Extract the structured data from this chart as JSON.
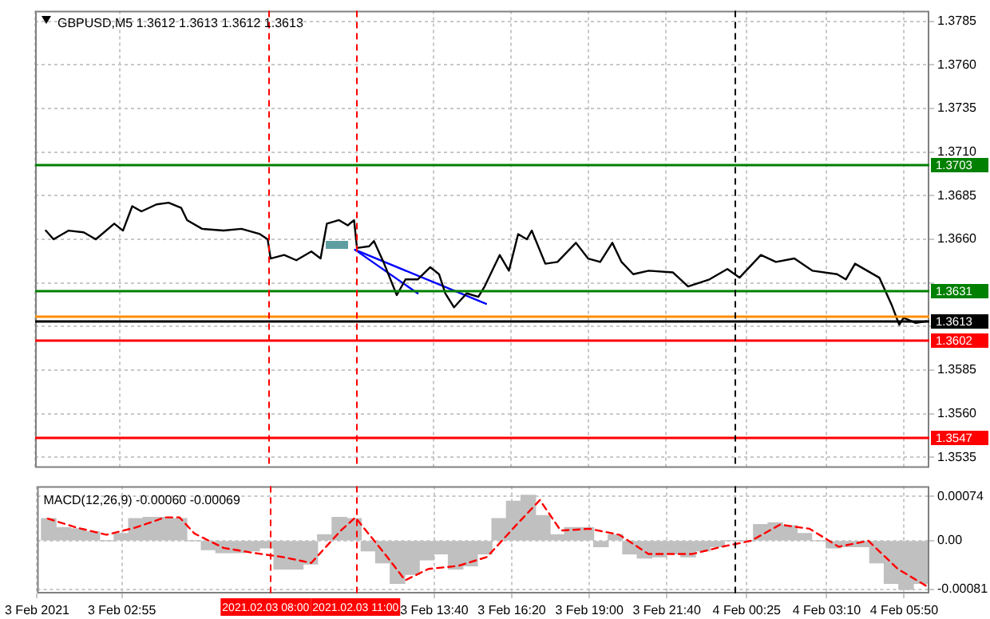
{
  "chart_data": [
    {
      "type": "line",
      "title": "GBPUSD,M5 1.3612 1.3613 1.3612 1.3613",
      "marker": "none",
      "grid": true,
      "tick_labels": "y",
      "xlim": [
        "2021-02-03T00:00",
        "2021-02-04T06:42"
      ],
      "xticks": [
        {
          "value": "2021-02-03T00:00",
          "label": null
        },
        {
          "value": "2021-02-03T02:55",
          "label": null
        },
        {
          "value": "2021-02-03T13:40",
          "label": null
        },
        {
          "value": "2021-02-03T16:20",
          "label": null
        },
        {
          "value": "2021-02-03T19:00",
          "label": null
        },
        {
          "value": "2021-02-03T21:40",
          "label": null
        },
        {
          "value": "2021-02-04T00:25",
          "label": null
        },
        {
          "value": "2021-02-04T03:10",
          "label": null
        },
        {
          "value": "2021-02-04T05:50",
          "label": null
        }
      ],
      "ylim": [
        1.3529,
        1.3791
      ],
      "yticks": [
        1.3785,
        {
          "value": 1.376,
          "label": "1.3760"
        },
        1.3735,
        {
          "value": 1.371,
          "label": "1.3710"
        },
        1.3685,
        {
          "value": 1.366,
          "label": "1.3660"
        },
        {
          "value": 1.3635,
          "label": null
        },
        {
          "value": 1.361,
          "label": null
        },
        1.3585,
        {
          "value": 1.356,
          "label": "1.3560"
        },
        1.3535
      ],
      "series": [
        {
          "color": "#000000",
          "x": [
            "2021-02-03T00:22",
            "2021-02-03T00:38",
            "2021-02-03T01:09",
            "2021-02-03T01:40",
            "2021-02-03T02:05",
            "2021-02-03T02:43",
            "2021-02-03T03:01",
            "2021-02-03T03:20",
            "2021-02-03T03:39",
            "2021-02-03T04:10",
            "2021-02-03T04:35",
            "2021-02-03T05:01",
            "2021-02-03T05:13",
            "2021-02-03T05:44",
            "2021-02-03T06:28",
            "2021-02-03T07:05",
            "2021-02-03T07:43",
            "2021-02-03T07:59",
            "2021-02-03T08:05",
            "2021-02-03T08:33",
            "2021-02-03T08:58",
            "2021-02-03T09:29",
            "2021-02-03T09:48",
            "2021-02-03T10:01",
            "2021-02-03T10:26",
            "2021-02-03T10:44",
            "2021-02-03T10:57",
            "2021-02-03T11:03",
            "2021-02-03T11:28",
            "2021-02-03T11:38",
            "2021-02-03T11:59",
            "2021-02-03T12:25",
            "2021-02-03T12:43",
            "2021-02-03T13:08",
            "2021-02-03T13:34",
            "2021-02-03T13:52",
            "2021-02-03T14:05",
            "2021-02-03T14:23",
            "2021-02-03T14:49",
            "2021-02-03T15:13",
            "2021-02-03T15:26",
            "2021-02-03T15:38",
            "2021-02-03T15:57",
            "2021-02-03T16:16",
            "2021-02-03T16:35",
            "2021-02-03T16:53",
            "2021-02-03T17:03",
            "2021-02-03T17:31",
            "2021-02-03T17:56",
            "2021-02-03T18:34",
            "2021-02-03T18:59",
            "2021-02-03T19:24",
            "2021-02-03T19:49",
            "2021-02-03T20:08",
            "2021-02-03T20:32",
            "2021-02-03T21:04",
            "2021-02-03T21:54",
            "2021-02-03T22:25",
            "2021-02-03T23:09",
            "2021-02-03T23:46",
            "2021-02-04T00:11",
            "2021-02-04T00:55",
            "2021-02-04T01:26",
            "2021-02-04T02:04",
            "2021-02-04T02:41",
            "2021-02-04T03:32",
            "2021-02-04T03:50",
            "2021-02-04T04:09",
            "2021-02-04T04:59",
            "2021-02-04T05:25",
            "2021-02-04T05:40",
            "2021-02-04T05:49",
            "2021-02-04T06:14",
            "2021-02-04T06:36"
          ],
          "values": [
            1.3665,
            1.366,
            1.3665,
            1.3664,
            1.366,
            1.3669,
            1.3665,
            1.3679,
            1.3676,
            1.368,
            1.3681,
            1.3678,
            1.3671,
            1.3666,
            1.3665,
            1.3666,
            1.3663,
            1.366,
            1.3649,
            1.3651,
            1.3648,
            1.3653,
            1.3649,
            1.3669,
            1.3671,
            1.3668,
            1.3671,
            1.3655,
            1.3656,
            1.3659,
            1.3646,
            1.3628,
            1.3637,
            1.3637,
            1.3644,
            1.364,
            1.3629,
            1.3621,
            1.3629,
            1.3627,
            1.3633,
            1.364,
            1.3651,
            1.3642,
            1.3663,
            1.366,
            1.3665,
            1.3646,
            1.3647,
            1.3658,
            1.3649,
            1.3647,
            1.3658,
            1.3647,
            1.364,
            1.3642,
            1.3641,
            1.3633,
            1.3637,
            1.3643,
            1.3638,
            1.3651,
            1.3647,
            1.3649,
            1.3642,
            1.364,
            1.3637,
            1.3646,
            1.3638,
            1.3622,
            1.3611,
            1.3615,
            1.3612,
            1.3613
          ]
        },
        {
          "type": "line",
          "color": "#0000ff",
          "x": [
            "2021-02-03T10:59",
            "2021-02-03T15:29"
          ],
          "values": [
            1.3654,
            1.3623
          ]
        },
        {
          "type": "line",
          "color": "#0000ff",
          "x": [
            "2021-02-03T10:59",
            "2021-02-03T13:08"
          ],
          "values": [
            1.3654,
            1.3629
          ]
        }
      ],
      "ref_lines": [
        {
          "axis": "y",
          "value": 1.3703,
          "label": "1.3703",
          "color": "#008000"
        },
        {
          "axis": "y",
          "value": 1.3631,
          "label": "1.3631",
          "color": "#008000"
        },
        {
          "axis": "y",
          "value": 1.3616,
          "color": "#ff8c00"
        },
        {
          "axis": "y",
          "value": 1.3613,
          "label": "1.3613",
          "color": "#000000"
        },
        {
          "axis": "y",
          "value": 1.3602,
          "label": "1.3602",
          "color": "#ff0000"
        },
        {
          "axis": "y",
          "value": 1.3547,
          "label": "1.3547",
          "color": "#ff0000"
        },
        {
          "axis": "x",
          "value": "2021-02-03T08:00",
          "color": "#ff0000",
          "line_style": "dashed"
        },
        {
          "axis": "x",
          "value": "2021-02-03T11:00",
          "color": "#ff0000",
          "line_style": "dashed"
        },
        {
          "axis": "x",
          "value": "2021-02-04T00:00",
          "color": "#000000",
          "line_style": "dashed"
        }
      ]
    },
    {
      "type": "bar",
      "annotations": [
        "MACD(12,26,9) -0.00060 -0.00069"
      ],
      "marker": "none",
      "grid": true,
      "xlim": [
        "2021-02-03T00:00",
        "2021-02-04T06:42"
      ],
      "xticks": [
        {
          "value": "2021-02-03T00:00",
          "label": "3 Feb 2021"
        },
        {
          "value": "2021-02-03T02:55",
          "label": "3 Feb 02:55"
        },
        {
          "value": "2021-02-03T13:40",
          "label": "3 Feb 13:40"
        },
        {
          "value": "2021-02-03T16:20",
          "label": "3 Feb 16:20"
        },
        {
          "value": "2021-02-03T19:00",
          "label": "3 Feb 19:00"
        },
        {
          "value": "2021-02-03T21:40",
          "label": "3 Feb 21:40"
        },
        {
          "value": "2021-02-04T00:25",
          "label": "4 Feb 00:25"
        },
        {
          "value": "2021-02-04T03:10",
          "label": "4 Feb 03:10"
        },
        {
          "value": "2021-02-04T05:50",
          "label": "4 Feb 05:50"
        }
      ],
      "ylim": [
        -0.00088,
        0.00091
      ],
      "yticks": [
        0.00074,
        {
          "value": 0,
          "label": "0.00"
        },
        -0.00081
      ],
      "series": [
        {
          "color": "#c0c0c0",
          "x": [
            "2021-02-03T00:24",
            "2021-02-03T00:54",
            "2021-02-03T01:24",
            "2021-02-03T01:54",
            "2021-02-03T02:24",
            "2021-02-03T02:54",
            "2021-02-03T03:24",
            "2021-02-03T03:54",
            "2021-02-03T04:24",
            "2021-02-03T04:54",
            "2021-02-03T05:24",
            "2021-02-03T05:54",
            "2021-02-03T06:24",
            "2021-02-03T06:54",
            "2021-02-03T07:24",
            "2021-02-03T07:54",
            "2021-02-03T08:24",
            "2021-02-03T08:54",
            "2021-02-03T09:24",
            "2021-02-03T09:54",
            "2021-02-03T10:24",
            "2021-02-03T10:54",
            "2021-02-03T11:24",
            "2021-02-03T11:54",
            "2021-02-03T12:24",
            "2021-02-03T12:54",
            "2021-02-03T13:24",
            "2021-02-03T13:54",
            "2021-02-03T14:24",
            "2021-02-03T14:54",
            "2021-02-03T15:24",
            "2021-02-03T15:54",
            "2021-02-03T16:24",
            "2021-02-03T16:54",
            "2021-02-03T17:24",
            "2021-02-03T17:54",
            "2021-02-03T18:24",
            "2021-02-03T18:54",
            "2021-02-03T19:24",
            "2021-02-03T19:54",
            "2021-02-03T20:24",
            "2021-02-03T20:54",
            "2021-02-03T21:24",
            "2021-02-03T21:54",
            "2021-02-03T22:24",
            "2021-02-03T22:54",
            "2021-02-03T23:24",
            "2021-02-03T23:54",
            "2021-02-04T00:24",
            "2021-02-04T00:54",
            "2021-02-04T01:24",
            "2021-02-04T01:54",
            "2021-02-04T02:24",
            "2021-02-04T02:54",
            "2021-02-04T03:24",
            "2021-02-04T03:54",
            "2021-02-04T04:24",
            "2021-02-04T04:54",
            "2021-02-04T05:24",
            "2021-02-04T05:54",
            "2021-02-04T06:24"
          ],
          "values": [
            0.00037,
            0.00022,
            0.0002,
            0.00015,
            0,
            0.00012,
            0.00037,
            0.00039,
            0.00039,
            0.00037,
            0,
            -0.00015,
            -0.0002,
            -0.0002,
            -0.00017,
            -0.00012,
            -0.00047,
            -0.00047,
            -0.00039,
            0.0001,
            0.00039,
            0.00037,
            -0.00017,
            -0.00037,
            -0.00071,
            -0.00056,
            -0.00032,
            -0.00022,
            -0.00047,
            -0.00042,
            -0.00022,
            0.00037,
            0.00066,
            0.00076,
            0.00042,
            0.0001,
            0.00022,
            0.00022,
            -0.0001,
            0.0001,
            -0.00022,
            -0.00029,
            -0.00027,
            -0.00022,
            -0.00027,
            -0.00017,
            -0.0001,
            0,
            0,
            0.00027,
            0.0003,
            0.00025,
            0.00012,
            0,
            -0.00012,
            -0.0001,
            -0.0001,
            -0.00037,
            -0.00071,
            -0.00081,
            -0.00071
          ]
        },
        {
          "type": "line",
          "line_style": "dashed",
          "color": "#ff0000",
          "x": [
            "2021-02-03T00:22",
            "2021-02-03T01:22",
            "2021-02-03T02:23",
            "2021-02-03T03:23",
            "2021-02-03T04:24",
            "2021-02-03T04:54",
            "2021-02-03T05:25",
            "2021-02-03T06:25",
            "2021-02-03T07:25",
            "2021-02-03T08:26",
            "2021-02-03T09:26",
            "2021-02-03T10:27",
            "2021-02-03T10:57",
            "2021-02-03T11:58",
            "2021-02-03T12:40",
            "2021-02-03T13:28",
            "2021-02-03T14:29",
            "2021-02-03T15:29",
            "2021-02-03T16:30",
            "2021-02-03T17:18",
            "2021-02-03T18:01",
            "2021-02-03T19:01",
            "2021-02-03T20:02",
            "2021-02-03T21:02",
            "2021-02-03T22:33",
            "2021-02-03T23:34",
            "2021-02-04T00:34",
            "2021-02-04T01:34",
            "2021-02-04T02:35",
            "2021-02-04T03:35",
            "2021-02-04T04:36",
            "2021-02-04T05:37",
            "2021-02-04T06:37"
          ],
          "values": [
            0.00037,
            0.00022,
            0.0001,
            0.00022,
            0.00039,
            0.00039,
            0.00012,
            -0.00012,
            -0.0002,
            -0.00027,
            -0.00037,
            0.00017,
            0.00039,
            -0.00022,
            -0.00066,
            -0.00047,
            -0.00042,
            -0.00027,
            0.00027,
            0.00068,
            0.00017,
            0.0002,
            0.0001,
            -0.00022,
            -0.00022,
            -0.0001,
            0,
            0.00027,
            0.0002,
            -0.0001,
            0,
            -0.00047,
            -0.00076
          ]
        }
      ],
      "ref_lines": [
        {
          "axis": "x",
          "value": "2021-02-03T08:00",
          "label": "2021.02.03 08:00",
          "color": "#ff0000",
          "line_style": "dashed"
        },
        {
          "axis": "x",
          "value": "2021-02-03T11:00",
          "label": "2021.02.03 11:00",
          "color": "#ff0000",
          "line_style": "dashed"
        },
        {
          "axis": "x",
          "value": "2021-02-04T00:00",
          "color": "#000000",
          "line_style": "dashed"
        }
      ]
    }
  ]
}
